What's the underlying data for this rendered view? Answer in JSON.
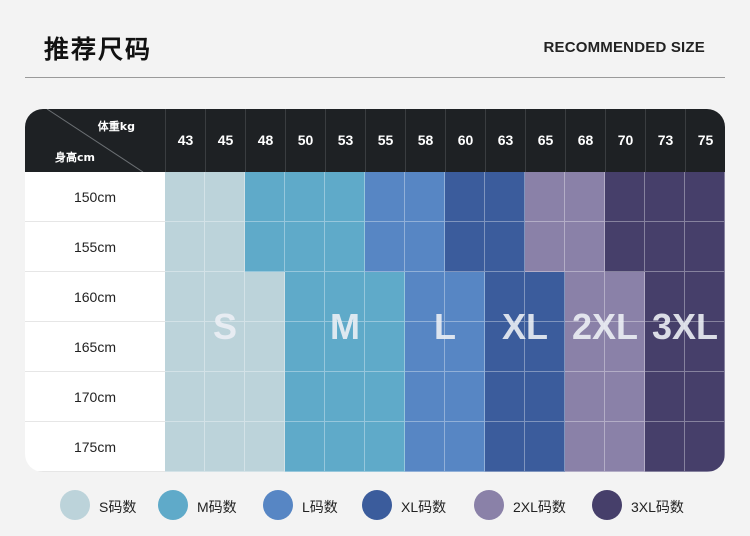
{
  "header": {
    "title": "推荐尺码",
    "subtitle": "RECOMMENDED SIZE"
  },
  "table": {
    "corner_weight_label": "体重kg",
    "corner_height_label": "身高cm",
    "weights": [
      "43",
      "45",
      "48",
      "50",
      "53",
      "55",
      "58",
      "60",
      "63",
      "65",
      "68",
      "70",
      "73",
      "75"
    ],
    "heights": [
      "150cm",
      "155cm",
      "160cm",
      "165cm",
      "170cm",
      "175cm"
    ],
    "sizes": [
      {
        "key": "S",
        "label": "S",
        "color": "#bcd3da"
      },
      {
        "key": "M",
        "label": "M",
        "color": "#5faac9"
      },
      {
        "key": "L",
        "label": "L",
        "color": "#5786c4"
      },
      {
        "key": "XL",
        "label": "XL",
        "color": "#3b5c9c"
      },
      {
        "key": "2XL",
        "label": "2XL",
        "color": "#8a81a8"
      },
      {
        "key": "3XL",
        "label": "3XL",
        "color": "#463f6a"
      }
    ],
    "grid": [
      [
        "S",
        "S",
        "M",
        "M",
        "M",
        "L",
        "L",
        "XL",
        "XL",
        "2XL",
        "2XL",
        "3XL",
        "3XL",
        "3XL"
      ],
      [
        "S",
        "S",
        "M",
        "M",
        "M",
        "L",
        "L",
        "XL",
        "XL",
        "2XL",
        "2XL",
        "3XL",
        "3XL",
        "3XL"
      ],
      [
        "S",
        "S",
        "S",
        "M",
        "M",
        "M",
        "L",
        "L",
        "XL",
        "XL",
        "2XL",
        "2XL",
        "3XL",
        "3XL"
      ],
      [
        "S",
        "S",
        "S",
        "M",
        "M",
        "M",
        "L",
        "L",
        "XL",
        "XL",
        "2XL",
        "2XL",
        "3XL",
        "3XL"
      ],
      [
        "S",
        "S",
        "S",
        "M",
        "M",
        "M",
        "L",
        "L",
        "XL",
        "XL",
        "2XL",
        "2XL",
        "3XL",
        "3XL"
      ],
      [
        "S",
        "S",
        "S",
        "M",
        "M",
        "M",
        "L",
        "L",
        "XL",
        "XL",
        "2XL",
        "2XL",
        "3XL",
        "3XL"
      ]
    ]
  },
  "legend": [
    {
      "label": "S码数",
      "color": "#bcd3da"
    },
    {
      "label": "M码数",
      "color": "#5faac9"
    },
    {
      "label": "L码数",
      "color": "#5786c4"
    },
    {
      "label": "XL码数",
      "color": "#3b5c9c"
    },
    {
      "label": "2XL码数",
      "color": "#8a81a8"
    },
    {
      "label": "3XL码数",
      "color": "#463f6a"
    }
  ]
}
